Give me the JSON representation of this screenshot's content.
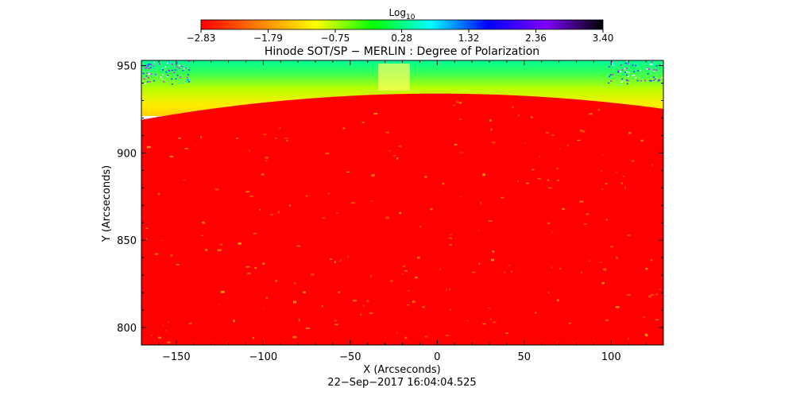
{
  "chart_data": {
    "type": "heatmap",
    "title": "Hinode SOT/SP − MERLIN : Degree of Polarization",
    "xlabel": "X (Arcseconds)",
    "ylabel": "Y (Arcseconds)",
    "timestamp": "22−Sep−2017 16:04:04.525",
    "xlim": [
      -170,
      130
    ],
    "ylim": [
      790,
      953
    ],
    "x_ticks": [
      -150,
      -100,
      -50,
      0,
      50,
      100
    ],
    "x_tick_labels": [
      "−150",
      "−100",
      "−50",
      "0",
      "50",
      "100"
    ],
    "y_ticks": [
      800,
      850,
      900,
      950
    ],
    "y_tick_labels": [
      "800",
      "850",
      "900",
      "950"
    ],
    "colorbar": {
      "label_base": "Log",
      "label_sub": "10",
      "range": [
        -2.83,
        3.4
      ],
      "ticks": [
        -2.83,
        -1.79,
        -0.75,
        0.28,
        1.32,
        2.36,
        3.4
      ],
      "tick_labels": [
        "−2.83",
        "−1.79",
        "−0.75",
        "0.28",
        "1.32",
        "2.36",
        "3.40"
      ],
      "colors": [
        "#ff0000",
        "#ff7f00",
        "#ffff00",
        "#00ff00",
        "#00ffff",
        "#0000ff",
        "#7f00ff",
        "#000000"
      ]
    },
    "limb": {
      "y_at_edges": 919,
      "y_at_peak": 934,
      "peak_x": 0
    },
    "field_color": "#ff0000",
    "above_limb_colors": [
      "#ffff00",
      "#7fff00",
      "#00ff7f"
    ]
  }
}
